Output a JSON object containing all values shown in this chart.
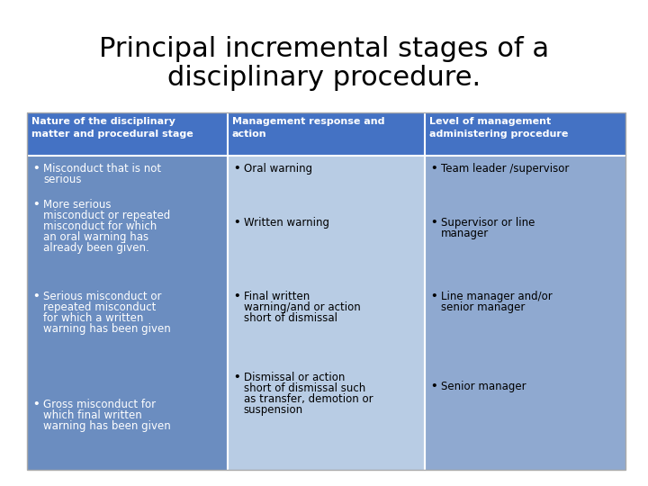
{
  "title_line1": "Principal incremental stages of a",
  "title_line2": "disciplinary procedure.",
  "title_fontsize": 22,
  "bg_color": "#ffffff",
  "header_bg": "#4472C4",
  "header_text_color": "#ffffff",
  "body_col0_bg": "#6B8DC0",
  "body_col1_bg": "#B8CCE4",
  "body_col2_bg": "#8FA9D0",
  "cell_text_color": "#ffffff",
  "headers": [
    "Nature of the disciplinary\nmatter and procedural stage",
    "Management response and\naction",
    "Level of management\nadministering procedure"
  ],
  "col0_bullets": [
    "Misconduct that is not serious",
    "More serious misconduct or repeated misconduct for which an oral warning has already been given.",
    "Serious misconduct or repeated misconduct for which a written warning has been given",
    "Gross misconduct for which final written warning has been given"
  ],
  "col1_bullets": [
    "Oral warning",
    "Written warning",
    "Final written warning/and or action short of dismissal",
    "Dismissal or action short of dismissal such as transfer, demotion or suspension"
  ],
  "col2_bullets": [
    "Team leader /supervisor",
    "Supervisor or line manager",
    "Line manager and/or senior manager",
    "Senior manager"
  ],
  "font_size_header": 8,
  "font_size_cell": 8
}
